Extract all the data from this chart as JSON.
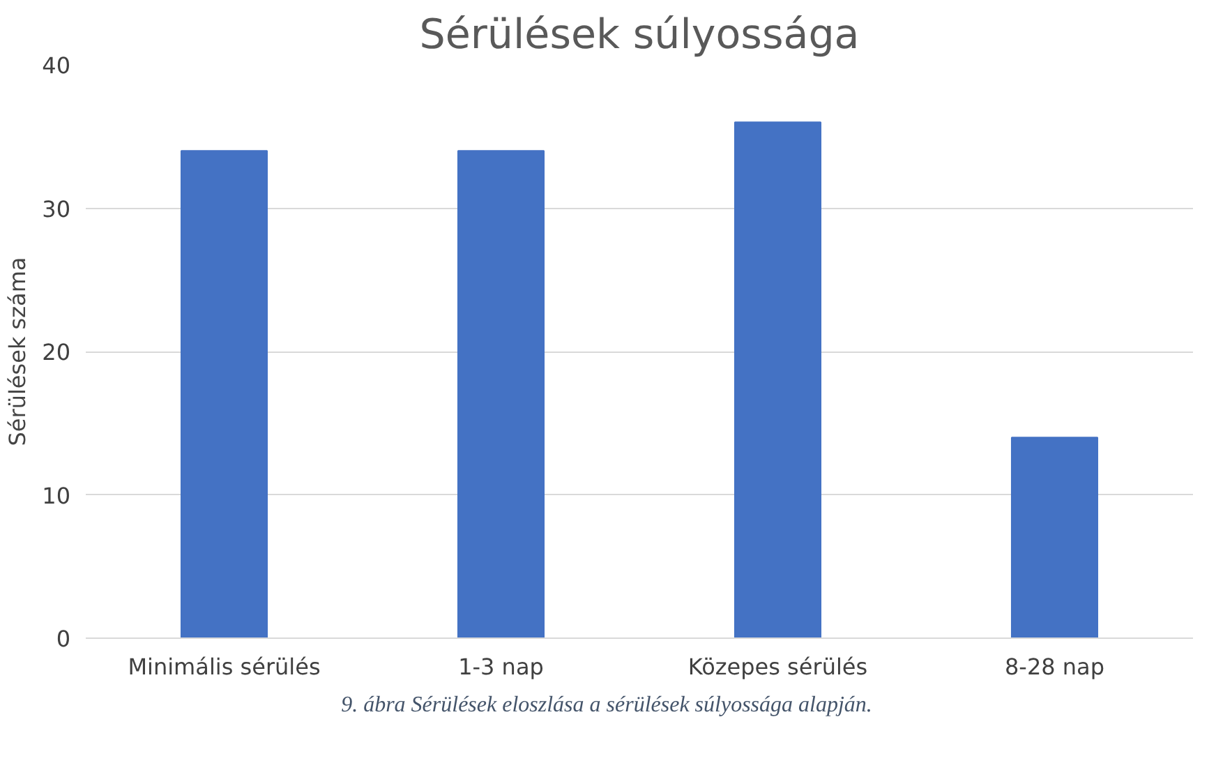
{
  "chart_data": {
    "type": "bar",
    "title": "Sérülések súlyossága",
    "ylabel": "Sérülések száma",
    "categories": [
      "Minimális sérülés",
      "1-3 nap",
      "Közepes sérülés",
      "8-28 nap"
    ],
    "values": [
      34,
      34,
      36,
      14
    ],
    "color": "#4472c4",
    "ylim": [
      0,
      40
    ],
    "yticks": [
      0,
      10,
      20,
      30,
      40
    ],
    "grid": "y",
    "annotations": [
      "9. ábra Sérülések eloszlása a sérülések súlyossága alapján."
    ]
  }
}
